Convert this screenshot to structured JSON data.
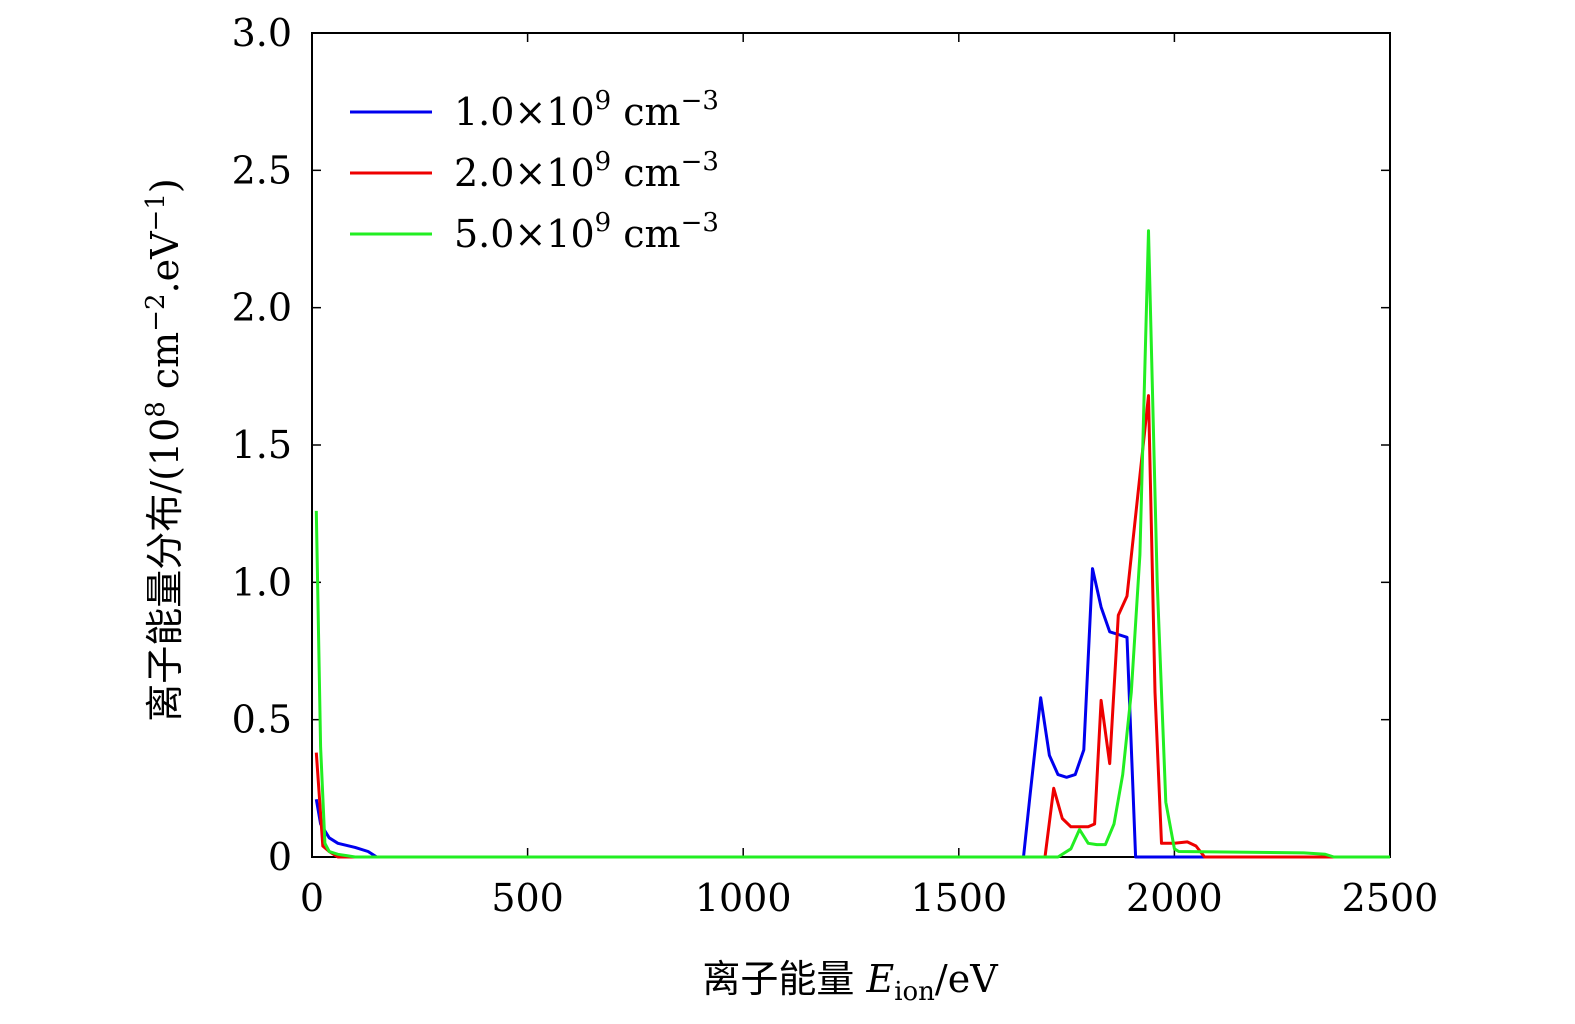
{
  "chart_data": {
    "type": "line",
    "title": "",
    "xlabel": {
      "prefix": "离子能量 ",
      "var": "E",
      "sub": "ion",
      "suffix": "/eV"
    },
    "ylabel": {
      "prefix": "离子能量分布/(10",
      "exp1": "8",
      "mid": " cm",
      "exp2": "−2",
      "mid2": ".eV",
      "exp3": "−1",
      "suffix": ")"
    },
    "xlim": [
      0,
      2500
    ],
    "ylim": [
      0,
      3.0
    ],
    "xticks": [
      0,
      500,
      1000,
      1500,
      2000,
      2500
    ],
    "xtick_labels": [
      "0",
      "500",
      "1000",
      "1500",
      "2000",
      "2500"
    ],
    "yticks": [
      0,
      0.5,
      1.0,
      1.5,
      2.0,
      2.5,
      3.0
    ],
    "ytick_labels": [
      "0",
      "0.5",
      "1.0",
      "1.5",
      "2.0",
      "2.5",
      "3.0"
    ],
    "grid": false,
    "legend_position": "top-left",
    "series": [
      {
        "name": "1.0×10⁹ cm⁻³",
        "legend": {
          "mant": "1.0",
          "times": "×",
          "base": "10",
          "exp": "9",
          "unit": " cm",
          "uexp": "−3"
        },
        "color": "#0000ee",
        "x": [
          10,
          20,
          40,
          60,
          100,
          130,
          150,
          1650,
          1665,
          1690,
          1710,
          1730,
          1750,
          1770,
          1790,
          1810,
          1830,
          1850,
          1870,
          1890,
          1910,
          1920,
          1940,
          2000,
          2500
        ],
        "y": [
          0.21,
          0.12,
          0.07,
          0.05,
          0.035,
          0.02,
          0.0,
          0.0,
          0.22,
          0.58,
          0.37,
          0.3,
          0.29,
          0.3,
          0.39,
          1.05,
          0.91,
          0.82,
          0.81,
          0.8,
          0.0,
          0.0,
          0.0,
          0.0,
          0.0
        ]
      },
      {
        "name": "2.0×10⁹ cm⁻³",
        "legend": {
          "mant": "2.0",
          "times": "×",
          "base": "10",
          "exp": "9",
          "unit": " cm",
          "uexp": "−3"
        },
        "color": "#ee0000",
        "x": [
          10,
          25,
          40,
          60,
          80,
          1700,
          1720,
          1740,
          1760,
          1780,
          1800,
          1815,
          1830,
          1850,
          1870,
          1890,
          1940,
          1955,
          1970,
          2000,
          2030,
          2050,
          2070,
          2300,
          2350,
          2500
        ],
        "y": [
          0.38,
          0.04,
          0.02,
          0.0,
          0.0,
          0.0,
          0.25,
          0.14,
          0.11,
          0.11,
          0.11,
          0.12,
          0.57,
          0.34,
          0.88,
          0.95,
          1.68,
          0.6,
          0.05,
          0.05,
          0.055,
          0.04,
          0.0,
          0.0,
          0.0,
          0.0
        ]
      },
      {
        "name": "5.0×10⁹ cm⁻³",
        "legend": {
          "mant": "5.0",
          "times": "×",
          "base": "10",
          "exp": "9",
          "unit": " cm",
          "uexp": "−3"
        },
        "color": "#22ee22",
        "x": [
          10,
          20,
          30,
          40,
          60,
          80,
          100,
          150,
          1730,
          1760,
          1780,
          1800,
          1820,
          1840,
          1860,
          1880,
          1900,
          1920,
          1940,
          1960,
          1980,
          2000,
          2010,
          2300,
          2350,
          2370,
          2500
        ],
        "y": [
          1.26,
          0.4,
          0.05,
          0.02,
          0.01,
          0.005,
          0.0,
          0.0,
          0.0,
          0.03,
          0.1,
          0.05,
          0.045,
          0.045,
          0.12,
          0.3,
          0.6,
          1.1,
          2.28,
          1.0,
          0.2,
          0.03,
          0.02,
          0.015,
          0.01,
          0.0,
          0.0
        ]
      }
    ]
  }
}
